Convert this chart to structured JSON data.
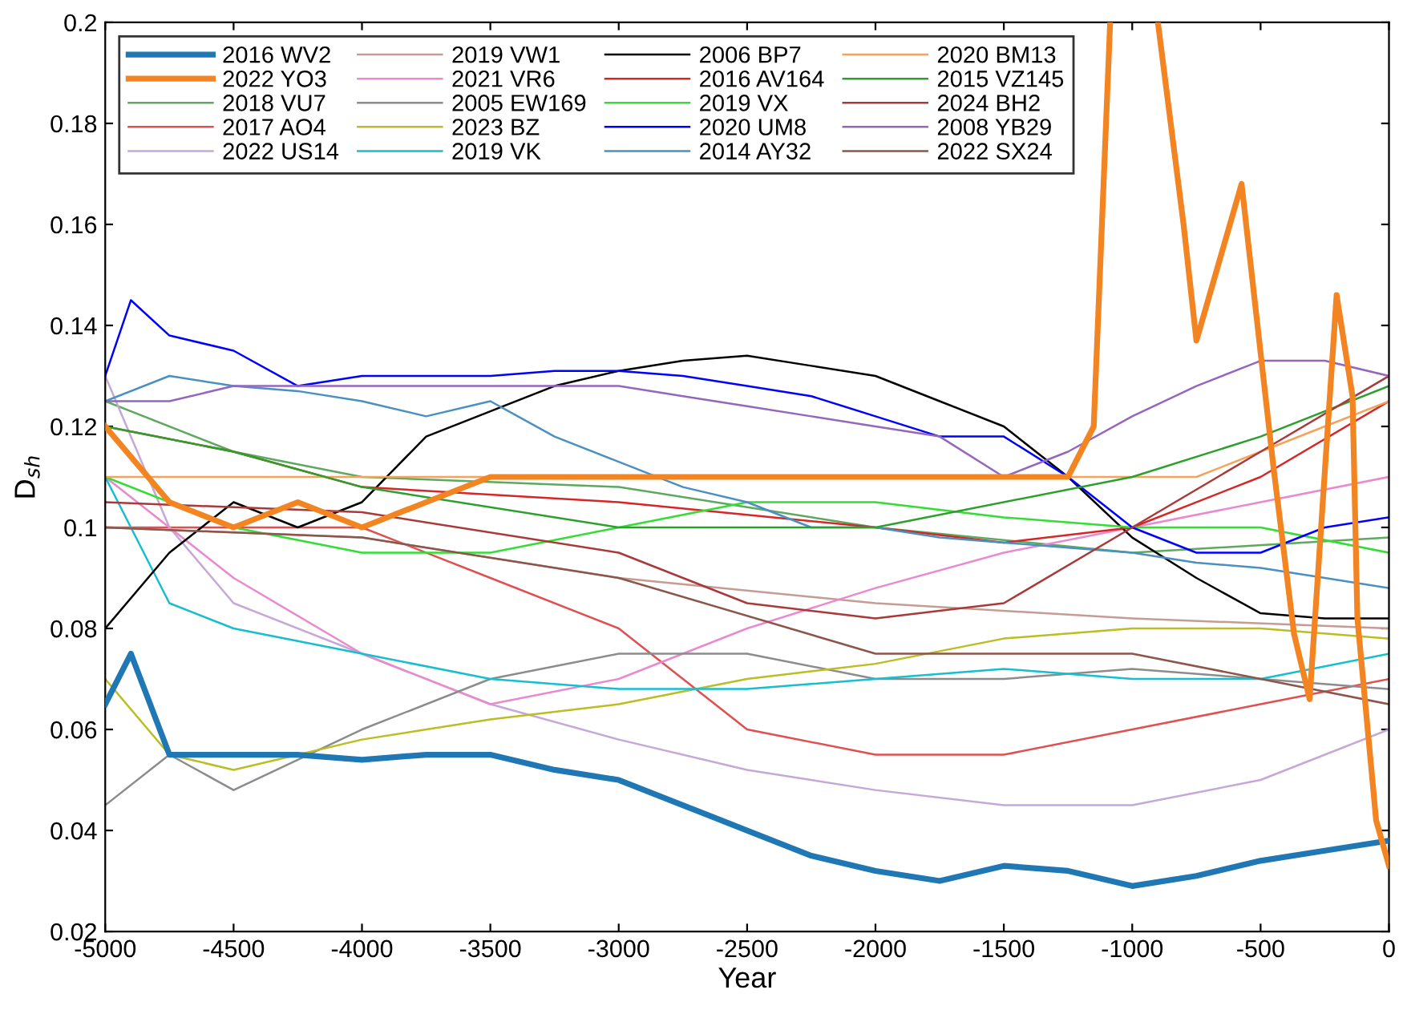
{
  "chart_data": {
    "type": "line",
    "xlabel": "Year",
    "ylabel": "D$_{sh}$",
    "xlim": [
      -5000,
      0
    ],
    "ylim": [
      0.02,
      0.2
    ],
    "xticks": [
      -5000,
      -4500,
      -4000,
      -3500,
      -3000,
      -2500,
      -2000,
      -1500,
      -1000,
      -500,
      0
    ],
    "yticks": [
      0.02,
      0.04,
      0.06,
      0.08,
      0.1,
      0.12,
      0.14,
      0.16,
      0.18,
      0.2
    ],
    "grid": false,
    "legend": "top left",
    "line_style": "solid",
    "marker": "none",
    "series": [
      {
        "name": "2016 WV2",
        "color": "#1f77b4",
        "x": [
          -5000,
          -4900,
          -4750,
          -4500,
          -4250,
          -4000,
          -3750,
          -3500,
          -3250,
          -3000,
          -2750,
          -2500,
          -2250,
          -2000,
          -1750,
          -1500,
          -1250,
          -1000,
          -750,
          -500,
          -250,
          0
        ],
        "values": [
          0.065,
          0.075,
          0.055,
          0.055,
          0.055,
          0.054,
          0.055,
          0.055,
          0.052,
          0.05,
          0.045,
          0.04,
          0.035,
          0.032,
          0.03,
          0.033,
          0.032,
          0.029,
          0.031,
          0.034,
          0.036,
          0.038
        ]
      },
      {
        "name": "2022 YO3",
        "color": "#f28522",
        "x": [
          -5000,
          -4750,
          -4500,
          -4250,
          -4000,
          -3750,
          -3500,
          -3000,
          -2500,
          -2000,
          -1500,
          -1250,
          -1150,
          -1086,
          -1050,
          -900,
          -850,
          -800,
          -750,
          -574,
          -450,
          -370,
          -309,
          -204,
          -142,
          -123,
          -50,
          0
        ],
        "values": [
          0.12,
          0.105,
          0.1,
          0.105,
          0.1,
          0.105,
          0.11,
          0.11,
          0.11,
          0.11,
          0.11,
          0.11,
          0.12,
          0.2,
          null,
          0.2,
          0.18,
          0.16,
          0.137,
          0.168,
          0.112,
          0.079,
          0.066,
          0.146,
          0.126,
          0.082,
          0.042,
          0.033
        ]
      },
      {
        "name": "2018 VU7",
        "color": "#5fa85f",
        "x": [
          -5000,
          -4500,
          -4000,
          -3000,
          -2000,
          -1000,
          0
        ],
        "values": [
          0.125,
          0.115,
          0.11,
          0.108,
          0.1,
          0.095,
          0.098
        ]
      },
      {
        "name": "2017 AO4",
        "color": "#e05050",
        "x": [
          -5000,
          -4000,
          -3500,
          -3000,
          -2500,
          -2000,
          -1500,
          -1000,
          -500,
          0
        ],
        "values": [
          0.1,
          0.1,
          0.09,
          0.08,
          0.06,
          0.055,
          0.055,
          0.06,
          0.065,
          0.07
        ]
      },
      {
        "name": "2022 US14",
        "color": "#c5a8d8",
        "x": [
          -5000,
          -4750,
          -4500,
          -4000,
          -3500,
          -3000,
          -2500,
          -2000,
          -1500,
          -1000,
          -500,
          0
        ],
        "values": [
          0.13,
          0.1,
          0.085,
          0.075,
          0.065,
          0.058,
          0.052,
          0.048,
          0.045,
          0.045,
          0.05,
          0.06
        ]
      },
      {
        "name": "2019 VW1",
        "color": "#c49c94",
        "x": [
          -5000,
          -4000,
          -3000,
          -2000,
          -1000,
          0
        ],
        "values": [
          0.1,
          0.098,
          0.09,
          0.085,
          0.082,
          0.08
        ]
      },
      {
        "name": "2021 VR6",
        "color": "#e98ad0",
        "x": [
          -5000,
          -4500,
          -4000,
          -3500,
          -3000,
          -2500,
          -2000,
          -1500,
          -1000,
          -500,
          0
        ],
        "values": [
          0.11,
          0.09,
          0.075,
          0.065,
          0.07,
          0.08,
          0.088,
          0.095,
          0.1,
          0.105,
          0.11
        ]
      },
      {
        "name": "2005 EW169",
        "color": "#8c8c8c",
        "x": [
          -5000,
          -4750,
          -4500,
          -4000,
          -3500,
          -3000,
          -2500,
          -2000,
          -1500,
          -1000,
          -500,
          0
        ],
        "values": [
          0.045,
          0.055,
          0.048,
          0.06,
          0.07,
          0.075,
          0.075,
          0.07,
          0.07,
          0.072,
          0.07,
          0.068
        ]
      },
      {
        "name": "2023 BZ",
        "color": "#bcbd22",
        "x": [
          -5000,
          -4750,
          -4500,
          -4000,
          -3500,
          -3000,
          -2500,
          -2000,
          -1500,
          -1000,
          -500,
          0
        ],
        "values": [
          0.07,
          0.055,
          0.052,
          0.058,
          0.062,
          0.065,
          0.07,
          0.073,
          0.078,
          0.08,
          0.08,
          0.078
        ]
      },
      {
        "name": "2019 VK",
        "color": "#17becf",
        "x": [
          -5000,
          -4750,
          -4500,
          -4000,
          -3500,
          -3000,
          -2500,
          -2000,
          -1500,
          -1000,
          -500,
          0
        ],
        "values": [
          0.11,
          0.085,
          0.08,
          0.075,
          0.07,
          0.068,
          0.068,
          0.07,
          0.072,
          0.07,
          0.07,
          0.075
        ]
      },
      {
        "name": "2006 BP7",
        "color": "#000000",
        "x": [
          -5000,
          -4750,
          -4500,
          -4250,
          -4000,
          -3750,
          -3500,
          -3250,
          -3000,
          -2750,
          -2500,
          -2250,
          -2000,
          -1750,
          -1500,
          -1250,
          -1000,
          -750,
          -500,
          -250,
          0
        ],
        "values": [
          0.08,
          0.095,
          0.105,
          0.1,
          0.105,
          0.118,
          0.123,
          0.128,
          0.131,
          0.133,
          0.134,
          0.132,
          0.13,
          0.125,
          0.12,
          0.11,
          0.098,
          0.09,
          0.083,
          0.082,
          0.082
        ]
      },
      {
        "name": "2016 AV164",
        "color": "#d62728",
        "x": [
          -5000,
          -4500,
          -4000,
          -3000,
          -2000,
          -1500,
          -1000,
          -500,
          0
        ],
        "values": [
          0.12,
          0.115,
          0.108,
          0.105,
          0.1,
          0.097,
          0.1,
          0.11,
          0.125
        ]
      },
      {
        "name": "2019 VX",
        "color": "#33dd33",
        "x": [
          -5000,
          -4500,
          -4000,
          -3500,
          -3000,
          -2500,
          -2000,
          -1500,
          -1000,
          -500,
          0
        ],
        "values": [
          0.11,
          0.1,
          0.095,
          0.095,
          0.1,
          0.105,
          0.105,
          0.102,
          0.1,
          0.1,
          0.095
        ]
      },
      {
        "name": "2020 UM8",
        "color": "#0000ff",
        "x": [
          -5000,
          -4900,
          -4750,
          -4500,
          -4250,
          -4000,
          -3750,
          -3500,
          -3250,
          -3000,
          -2750,
          -2500,
          -2250,
          -2000,
          -1750,
          -1500,
          -1250,
          -1000,
          -750,
          -500,
          -250,
          0
        ],
        "values": [
          0.13,
          0.145,
          0.138,
          0.135,
          0.128,
          0.13,
          0.13,
          0.13,
          0.131,
          0.131,
          0.13,
          0.128,
          0.126,
          0.122,
          0.118,
          0.118,
          0.11,
          0.1,
          0.095,
          0.095,
          0.1,
          0.102
        ]
      },
      {
        "name": "2014 AY32",
        "color": "#4a90c0",
        "x": [
          -5000,
          -4750,
          -4500,
          -4250,
          -4000,
          -3750,
          -3500,
          -3250,
          -3000,
          -2750,
          -2500,
          -2250,
          -2000,
          -1750,
          -1500,
          -1250,
          -1000,
          -750,
          -500,
          -250,
          0
        ],
        "values": [
          0.125,
          0.13,
          0.128,
          0.127,
          0.125,
          0.122,
          0.125,
          0.118,
          0.113,
          0.108,
          0.105,
          0.1,
          0.1,
          0.098,
          0.097,
          0.096,
          0.095,
          0.093,
          0.092,
          0.09,
          0.088
        ]
      },
      {
        "name": "2020 BM13",
        "color": "#f5a35a",
        "x": [
          -5000,
          -4000,
          -3000,
          -2000,
          -1000,
          -750,
          -500,
          -250,
          0
        ],
        "values": [
          0.11,
          0.11,
          0.11,
          0.11,
          0.11,
          0.11,
          0.115,
          0.12,
          0.125
        ]
      },
      {
        "name": "2015 VZ145",
        "color": "#2ca02c",
        "x": [
          -5000,
          -4500,
          -4000,
          -3000,
          -2000,
          -1000,
          -500,
          0
        ],
        "values": [
          0.12,
          0.115,
          0.108,
          0.1,
          0.1,
          0.11,
          0.118,
          0.128
        ]
      },
      {
        "name": "2024 BH2",
        "color": "#a83a3a",
        "x": [
          -5000,
          -4000,
          -3000,
          -2500,
          -2000,
          -1500,
          -1000,
          -500,
          0
        ],
        "values": [
          0.105,
          0.103,
          0.095,
          0.085,
          0.082,
          0.085,
          0.1,
          0.115,
          0.13
        ]
      },
      {
        "name": "2008 YB29",
        "color": "#9467bd",
        "x": [
          -5000,
          -4750,
          -4500,
          -4000,
          -3500,
          -3000,
          -2750,
          -2500,
          -2250,
          -2000,
          -1750,
          -1500,
          -1250,
          -1000,
          -750,
          -500,
          -250,
          0
        ],
        "values": [
          0.125,
          0.125,
          0.128,
          0.128,
          0.128,
          0.128,
          0.126,
          0.124,
          0.122,
          0.12,
          0.118,
          0.11,
          0.115,
          0.122,
          0.128,
          0.133,
          0.133,
          0.13
        ]
      },
      {
        "name": "2022 SX24",
        "color": "#8c564b",
        "x": [
          -5000,
          -4000,
          -3000,
          -2000,
          -1500,
          -1000,
          -500,
          0
        ],
        "values": [
          0.1,
          0.098,
          0.09,
          0.075,
          0.075,
          0.075,
          0.07,
          0.065
        ]
      }
    ]
  }
}
